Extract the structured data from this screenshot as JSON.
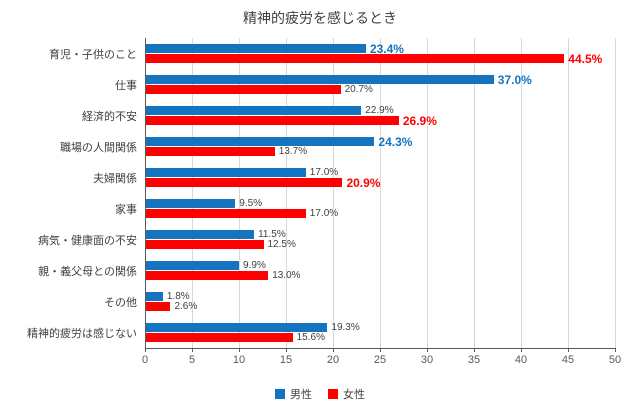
{
  "chart_data": {
    "type": "bar",
    "orientation": "horizontal",
    "title": "精神的疲労を感じるとき",
    "categories": [
      "育児・子供のこと",
      "仕事",
      "経済的不安",
      "職場の人間関係",
      "夫婦関係",
      "家事",
      "病気・健康面の不安",
      "親・義父母との関係",
      "その他",
      "精神的疲労は感じない"
    ],
    "series": [
      {
        "name": "男性",
        "color": "#1574BF",
        "values": [
          23.4,
          37.0,
          22.9,
          24.3,
          17.0,
          9.5,
          11.5,
          9.9,
          1.8,
          19.3
        ],
        "emphasized_labels": [
          true,
          true,
          false,
          true,
          false,
          false,
          false,
          false,
          false,
          false
        ]
      },
      {
        "name": "女性",
        "color": "#FF0000",
        "values": [
          44.5,
          20.7,
          26.9,
          13.7,
          20.9,
          17.0,
          12.5,
          13.0,
          2.6,
          15.6
        ],
        "emphasized_labels": [
          true,
          false,
          true,
          false,
          true,
          false,
          false,
          false,
          false,
          false
        ]
      }
    ],
    "value_label_suffix": "%",
    "xlim": [
      0,
      50
    ],
    "xticks": [
      0,
      5,
      10,
      15,
      20,
      25,
      30,
      35,
      40,
      45,
      50
    ],
    "grid": true,
    "legend_position": "bottom",
    "colors": {
      "plain_label": "#404040",
      "axis": "#595959",
      "gridline": "#d9d9d9"
    }
  }
}
